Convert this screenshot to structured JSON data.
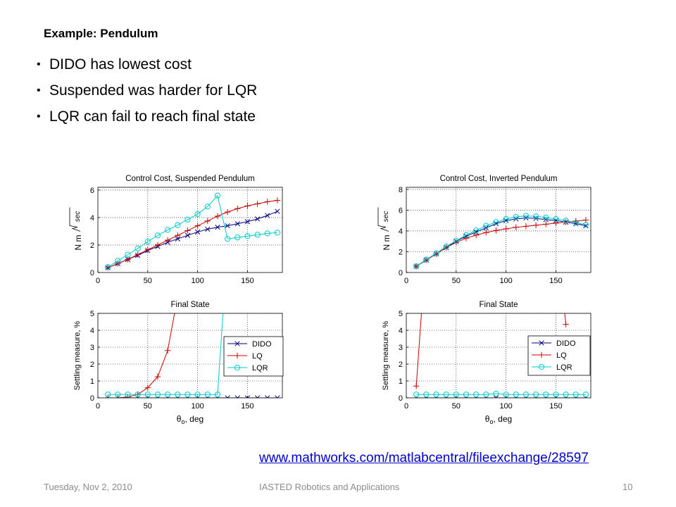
{
  "slide": {
    "title": "Example: Pendulum",
    "bullets": [
      "DIDO has lowest cost",
      "Suspended was harder for LQR",
      "LQR can fail to reach final state"
    ],
    "link": "www.mathworks.com/matlabcentral/fileexchange/28597",
    "footer": {
      "date": "Tuesday, Nov 2, 2010",
      "conference": "IASTED Robotics and Applications",
      "page": "10"
    }
  },
  "chart_data": [
    {
      "type": "line",
      "title": "Control Cost, Suspended Pendulum",
      "xlabel": "",
      "ylabel": "N m √sec",
      "xlim": [
        0,
        185
      ],
      "ylim": [
        0,
        6.2
      ],
      "xticks": [
        0,
        50,
        100,
        150
      ],
      "yticks": [
        0,
        2,
        4,
        6
      ],
      "grid": true,
      "x": [
        10,
        20,
        30,
        40,
        50,
        60,
        70,
        80,
        90,
        100,
        110,
        120,
        130,
        140,
        150,
        160,
        170,
        180
      ],
      "series": [
        {
          "name": "DIDO",
          "color": "#000080",
          "marker": "x",
          "values": [
            0.35,
            0.65,
            0.95,
            1.25,
            1.6,
            1.9,
            2.2,
            2.45,
            2.7,
            2.95,
            3.15,
            3.3,
            3.4,
            3.55,
            3.7,
            3.9,
            4.15,
            4.45
          ]
        },
        {
          "name": "LQ",
          "color": "#cc0000",
          "marker": "+",
          "values": [
            0.35,
            0.65,
            0.95,
            1.3,
            1.65,
            2.0,
            2.35,
            2.7,
            3.05,
            3.4,
            3.75,
            4.1,
            4.4,
            4.65,
            4.85,
            5.0,
            5.15,
            5.25
          ]
        },
        {
          "name": "LQR",
          "color": "#00cccc",
          "marker": "o",
          "values": [
            0.4,
            0.85,
            1.3,
            1.75,
            2.25,
            2.7,
            3.1,
            3.45,
            3.85,
            4.25,
            4.8,
            5.6,
            2.45,
            2.55,
            2.65,
            2.75,
            2.85,
            2.9
          ]
        }
      ]
    },
    {
      "type": "line",
      "title": "Control Cost, Inverted Pendulum",
      "xlabel": "",
      "ylabel": "N m √sec",
      "xlim": [
        0,
        185
      ],
      "ylim": [
        0,
        8.2
      ],
      "xticks": [
        0,
        50,
        100,
        150
      ],
      "yticks": [
        0,
        2,
        4,
        6,
        8
      ],
      "grid": true,
      "x": [
        10,
        20,
        30,
        40,
        50,
        60,
        70,
        80,
        90,
        100,
        110,
        120,
        130,
        140,
        150,
        160,
        170,
        180
      ],
      "series": [
        {
          "name": "DIDO",
          "color": "#000080",
          "marker": "x",
          "values": [
            0.6,
            1.2,
            1.8,
            2.4,
            3.0,
            3.5,
            3.9,
            4.3,
            4.7,
            5.0,
            5.15,
            5.25,
            5.2,
            5.1,
            5.0,
            4.85,
            4.7,
            4.5
          ]
        },
        {
          "name": "LQ",
          "color": "#cc0000",
          "marker": "+",
          "values": [
            0.6,
            1.2,
            1.8,
            2.4,
            2.9,
            3.3,
            3.6,
            3.85,
            4.05,
            4.2,
            4.35,
            4.45,
            4.55,
            4.65,
            4.75,
            4.85,
            4.95,
            5.05
          ]
        },
        {
          "name": "LQR",
          "color": "#00cccc",
          "marker": "o",
          "values": [
            0.6,
            1.25,
            1.85,
            2.5,
            3.05,
            3.6,
            4.05,
            4.5,
            4.85,
            5.15,
            5.35,
            5.45,
            5.4,
            5.3,
            5.15,
            5.0,
            4.8,
            4.6
          ]
        }
      ]
    },
    {
      "type": "line",
      "title": "Final State",
      "xlabel": "θo, deg",
      "ylabel": "Settling measure, %",
      "xlim": [
        0,
        185
      ],
      "ylim": [
        0,
        5
      ],
      "xticks": [
        0,
        50,
        100,
        150
      ],
      "yticks": [
        0,
        1,
        2,
        3,
        4,
        5
      ],
      "grid": true,
      "legend": "center-right",
      "x": [
        10,
        20,
        30,
        40,
        50,
        60,
        70,
        80,
        90,
        100,
        110,
        120,
        130,
        140,
        150,
        160,
        170,
        180
      ],
      "series": [
        {
          "name": "DIDO",
          "color": "#000080",
          "marker": "x",
          "values": [
            0,
            0,
            0,
            0,
            0,
            0,
            0,
            0,
            0,
            0,
            0,
            0,
            0,
            0,
            0,
            0,
            0,
            0
          ]
        },
        {
          "name": "LQ",
          "color": "#cc0000",
          "marker": "+",
          "values": [
            0,
            0,
            0.05,
            0.2,
            0.6,
            1.25,
            2.8,
            6.0,
            null,
            null,
            null,
            null,
            null,
            null,
            null,
            null,
            null,
            null
          ]
        },
        {
          "name": "LQR",
          "color": "#00cccc",
          "marker": "o",
          "values": [
            0.2,
            0.2,
            0.2,
            0.2,
            0.2,
            0.2,
            0.2,
            0.2,
            0.2,
            0.2,
            0.2,
            0.2,
            9.0,
            null,
            null,
            null,
            null,
            null
          ]
        }
      ]
    },
    {
      "type": "line",
      "title": "Final State",
      "xlabel": "θo, deg",
      "ylabel": "Settling measure, %",
      "xlim": [
        0,
        185
      ],
      "ylim": [
        0,
        5
      ],
      "xticks": [
        0,
        50,
        100,
        150
      ],
      "yticks": [
        0,
        1,
        2,
        3,
        4,
        5
      ],
      "grid": true,
      "legend": "center-right",
      "x": [
        10,
        20,
        30,
        40,
        50,
        60,
        70,
        80,
        90,
        100,
        110,
        120,
        130,
        140,
        150,
        160,
        170,
        180
      ],
      "series": [
        {
          "name": "DIDO",
          "color": "#000080",
          "marker": "x",
          "values": [
            0,
            0,
            0,
            0,
            0,
            0,
            0,
            0,
            0,
            0,
            0,
            0,
            0,
            0,
            0,
            0,
            0,
            0
          ]
        },
        {
          "name": "LQ",
          "color": "#cc0000",
          "marker": "+",
          "values": [
            0.7,
            9.0,
            null,
            null,
            null,
            null,
            null,
            null,
            null,
            null,
            null,
            null,
            null,
            null,
            null,
            4.35,
            null,
            null
          ],
          "segments": [
            [
              [
                10,
                0.7
              ],
              [
                20,
                9.0
              ]
            ],
            [
              [
                158,
                5.5
              ],
              [
                160,
                4.35
              ]
            ]
          ]
        },
        {
          "name": "LQR",
          "color": "#00cccc",
          "marker": "o",
          "values": [
            0.2,
            0.2,
            0.2,
            0.2,
            0.2,
            0.2,
            0.2,
            0.2,
            0.25,
            0.2,
            0.2,
            0.2,
            0.2,
            0.2,
            0.2,
            0.2,
            0.2,
            0.2
          ]
        }
      ]
    }
  ]
}
